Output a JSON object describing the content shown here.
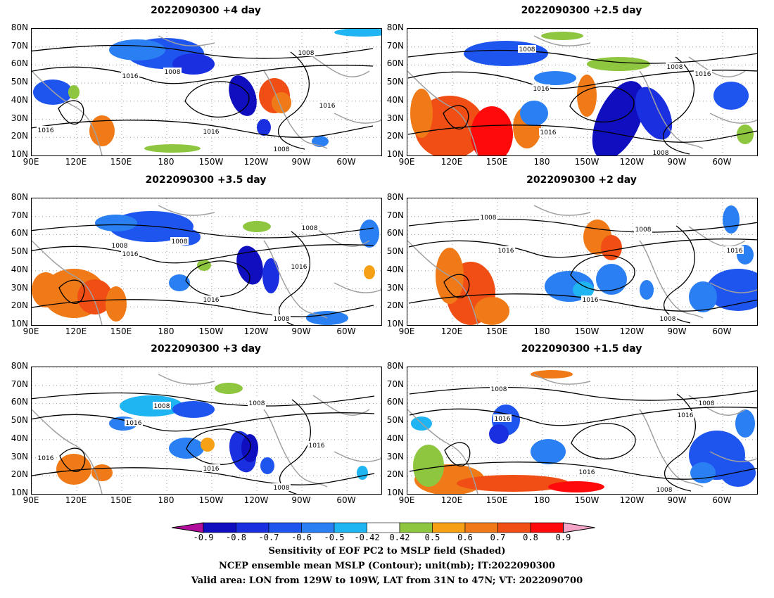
{
  "panels": [
    {
      "title": "2022090300  +4 day"
    },
    {
      "title": "2022090300  +2.5 day"
    },
    {
      "title": "2022090300  +3.5 day"
    },
    {
      "title": "2022090300  +2 day"
    },
    {
      "title": "2022090300  +3 day"
    },
    {
      "title": "2022090300  +1.5 day"
    }
  ],
  "axes": {
    "lat_labels": [
      "80N",
      "70N",
      "60N",
      "50N",
      "40N",
      "30N",
      "20N",
      "10N"
    ],
    "lon_labels": [
      "90E",
      "120E",
      "150E",
      "180",
      "150W",
      "120W",
      "90W",
      "60W"
    ]
  },
  "contour_labels": [
    "1008",
    "1016"
  ],
  "colorbar": {
    "ticks": [
      "-0.9",
      "-0.8",
      "-0.7",
      "-0.6",
      "-0.5",
      "-0.42",
      "0.42",
      "0.5",
      "0.6",
      "0.7",
      "0.8",
      "0.9"
    ],
    "colors": [
      "#0f0fbf",
      "#1a2fe0",
      "#1f55ef",
      "#2a7ff2",
      "#1fb4f2",
      "#ffffff",
      "#8ec63f",
      "#f5a015",
      "#f07a18",
      "#f04e14",
      "#ff0a0a"
    ],
    "left_arrow_color": "#b20c9c",
    "right_arrow_color": "#f4a5c8"
  },
  "captions": [
    "Sensitivity of EOF PC2 to MSLP field (Shaded)",
    "NCEP ensemble mean MSLP (Contour); unit(mb); IT:2022090300",
    "Valid area: LON from 129W to 109W, LAT from 31N to 47N; VT: 2022090700"
  ]
}
